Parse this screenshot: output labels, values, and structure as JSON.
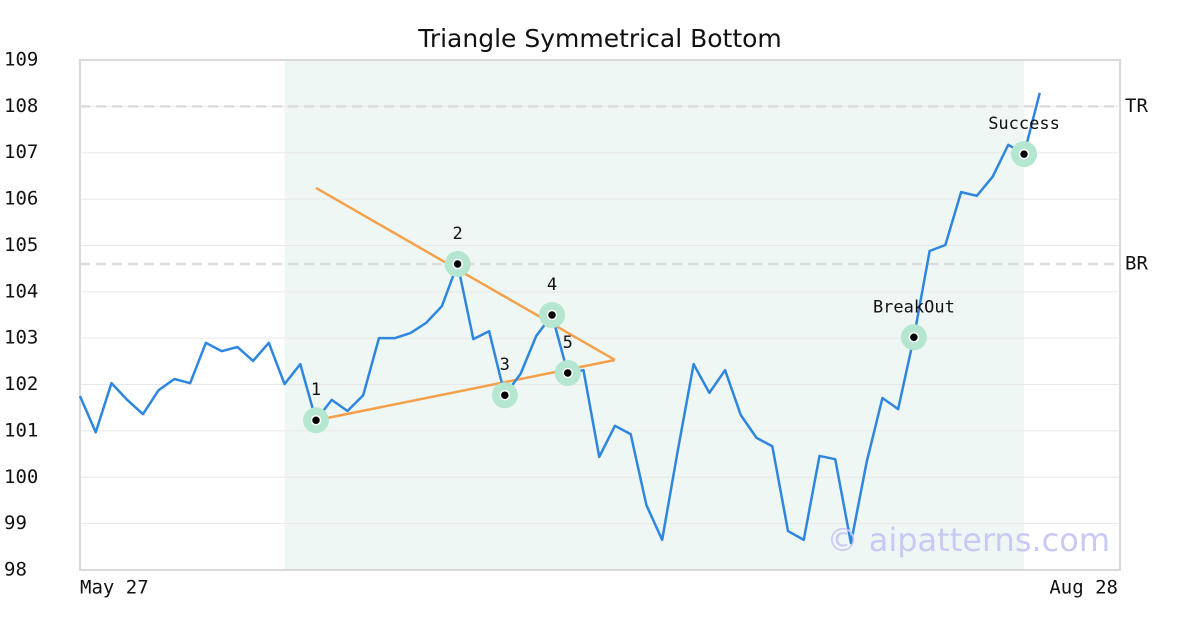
{
  "chart_data": {
    "type": "line",
    "title": "Triangle Symmetrical Bottom",
    "watermark": "© aipatterns.com",
    "series": [
      {
        "color": "#2e86de",
        "values": [
          101.75,
          100.97,
          102.03,
          101.67,
          101.36,
          101.88,
          102.12,
          102.03,
          102.9,
          102.72,
          102.81,
          102.51,
          102.9,
          102.01,
          102.44,
          101.23,
          101.67,
          101.43,
          101.77,
          103.0,
          103.0,
          103.11,
          103.33,
          103.69,
          104.6,
          102.98,
          103.15,
          101.77,
          102.23,
          103.05,
          103.5,
          102.25,
          102.31,
          100.44,
          101.11,
          100.93,
          99.4,
          98.65,
          100.59,
          102.44,
          101.82,
          102.31,
          101.34,
          100.85,
          100.67,
          98.84,
          98.65,
          100.46,
          100.39,
          98.58,
          100.33,
          101.71,
          101.47,
          103.02,
          104.88,
          105.01,
          106.15,
          106.07,
          106.48,
          107.17,
          106.97,
          108.29
        ]
      }
    ],
    "xlim": [
      0,
      66.1
    ],
    "xticks": [
      {
        "value": 0,
        "label": "May 27"
      },
      {
        "value": 66.1,
        "label": "Aug 28"
      }
    ],
    "ylim": [
      98,
      109
    ],
    "yticks": [
      98,
      99,
      100,
      101,
      102,
      103,
      104,
      105,
      106,
      107,
      108,
      109
    ],
    "grid": true,
    "highlight_range": [
      13,
      60
    ],
    "highlight_color": "#eef7f3",
    "hlines": [
      {
        "label": "TR",
        "value": 108
      },
      {
        "label": "BR",
        "value": 104.6
      }
    ],
    "trendline_color": "#f5a04a",
    "trendlines": [
      {
        "x": [
          15,
          34
        ],
        "y": [
          106.24,
          102.53
        ]
      },
      {
        "x": [
          15,
          34
        ],
        "y": [
          101.23,
          102.53
        ]
      }
    ],
    "marker_color": "#b5e6cf",
    "markers": [
      {
        "label": "1",
        "x": 15,
        "y": 101.23
      },
      {
        "label": "2",
        "x": 24,
        "y": 104.6
      },
      {
        "label": "3",
        "x": 27,
        "y": 101.77
      },
      {
        "label": "4",
        "x": 30,
        "y": 103.5
      },
      {
        "label": "5",
        "x": 31,
        "y": 102.25
      },
      {
        "label": "BreakOut",
        "x": 53,
        "y": 103.02
      },
      {
        "label": "Success",
        "x": 60,
        "y": 106.97
      }
    ]
  }
}
